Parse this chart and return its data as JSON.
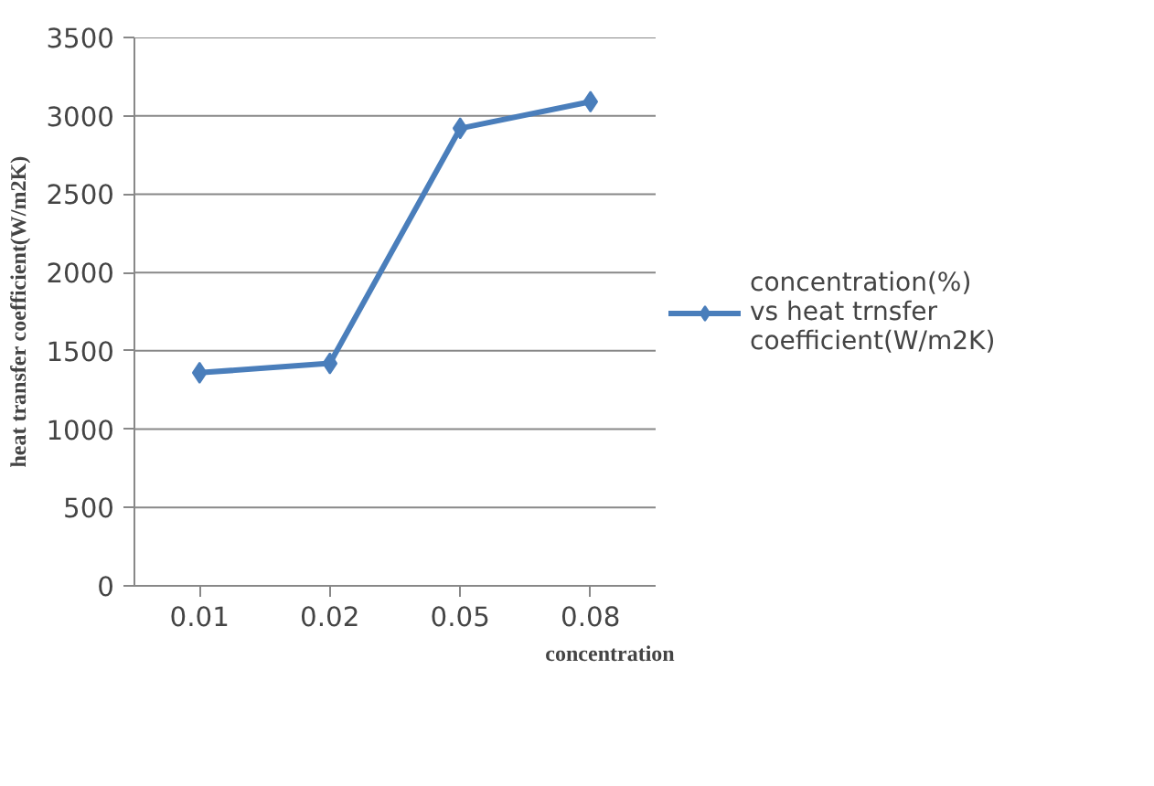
{
  "chart_data": {
    "type": "line",
    "xlabel": "concentration",
    "ylabel": "heat transfer coefficient(W/m2K)",
    "categories": [
      "0.01",
      "0.02",
      "0.05",
      "0.08"
    ],
    "series": [
      {
        "name": "concentration(%) vs heat trnsfer coefficient(W/m2K)",
        "color": "#4a7ebb",
        "values": [
          1360,
          1420,
          2920,
          3090
        ]
      }
    ],
    "ylim": [
      0,
      3500
    ],
    "yticks": [
      0,
      500,
      1000,
      1500,
      2000,
      2500,
      3000,
      3500
    ],
    "grid": "y",
    "legend": "right",
    "marker": "diamond",
    "line_style": "solid"
  }
}
